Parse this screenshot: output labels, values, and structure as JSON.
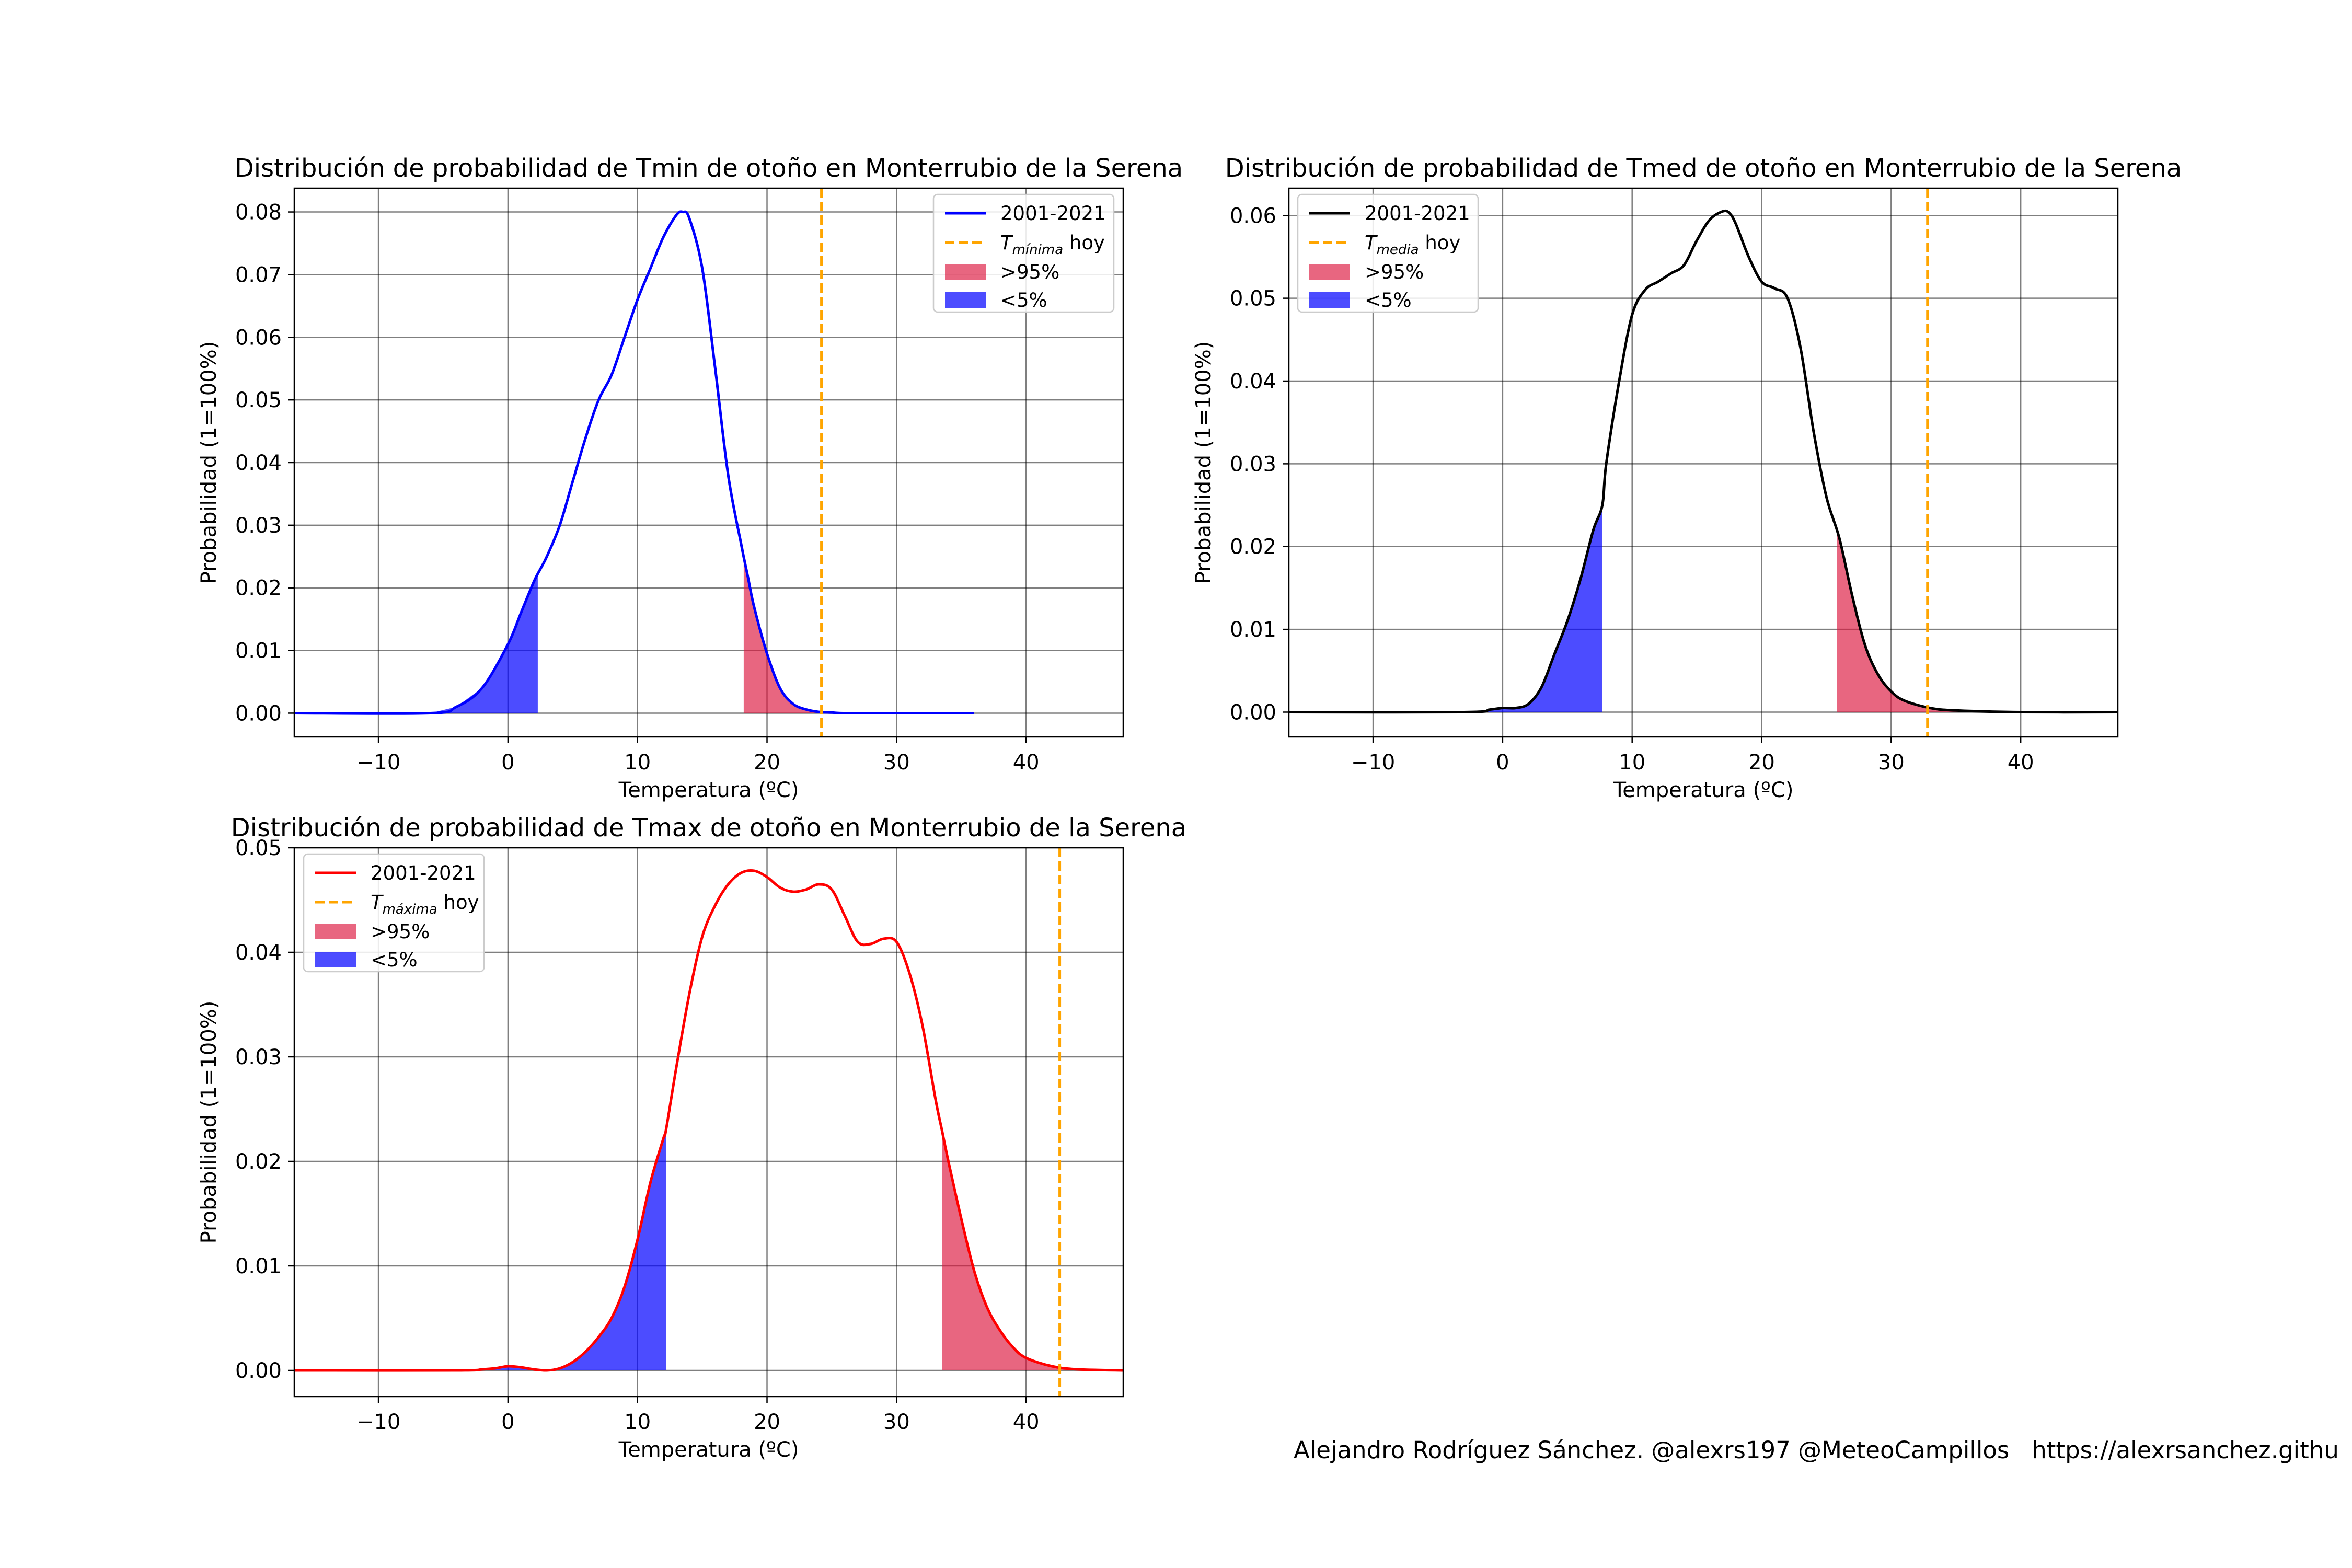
{
  "footer": "Alejandro Rodríguez Sánchez. @alexrs197 @MeteoCampillos   https://alexrsanchez.githu",
  "colors": {
    "above95": "#DC143C",
    "below5": "#0000FF",
    "today": "#FFA500",
    "grid": "#000000"
  },
  "chart_data": [
    {
      "id": "tmin",
      "type": "line",
      "title": "Distribución de probabilidad de Tmin de otoño en Monterrubio de la Serena",
      "xlabel": "Temperatura (ºC)",
      "ylabel": "Probabilidad (1=100%)",
      "xlim": [
        -16.5,
        47.5
      ],
      "ylim": [
        -0.0038,
        0.0838
      ],
      "xticks": [
        -10,
        0,
        10,
        20,
        30,
        40
      ],
      "xtick_labels": [
        "−10",
        "0",
        "10",
        "20",
        "30",
        "40"
      ],
      "yticks": [
        0.0,
        0.01,
        0.02,
        0.03,
        0.04,
        0.05,
        0.06,
        0.07,
        0.08
      ],
      "ytick_labels": [
        "0.00",
        "0.01",
        "0.02",
        "0.03",
        "0.04",
        "0.05",
        "0.06",
        "0.07",
        "0.08"
      ],
      "grid": true,
      "legend_position": "top-right",
      "legend": {
        "series": "2001-2021",
        "today_prefix": "T",
        "today_sub": "mínima",
        "today_suffix": " hoy",
        "above": ">95%",
        "below": "<5%"
      },
      "line_color": "#0000FF",
      "series": [
        {
          "name": "2001-2021",
          "x": [
            -16.5,
            -6,
            -4,
            -2,
            0,
            1,
            2,
            2.5,
            3,
            4,
            5,
            6,
            7,
            8,
            9,
            10,
            11,
            12,
            13,
            13.5,
            14,
            15,
            16,
            17,
            18,
            18.5,
            19,
            20,
            21,
            22,
            23,
            24,
            25,
            26,
            30,
            36
          ],
          "y": [
            0,
            0,
            0.001,
            0.004,
            0.011,
            0.016,
            0.021,
            0.023,
            0.025,
            0.03,
            0.037,
            0.044,
            0.05,
            0.054,
            0.06,
            0.066,
            0.071,
            0.076,
            0.0795,
            0.08,
            0.079,
            0.071,
            0.055,
            0.038,
            0.027,
            0.022,
            0.017,
            0.0095,
            0.004,
            0.0015,
            0.0006,
            0.0002,
            0.0001,
            0,
            0,
            0
          ]
        }
      ],
      "below5_upper": 2.3,
      "above95_lower": 18.2,
      "today_value": 24.2
    },
    {
      "id": "tmed",
      "type": "line",
      "title": "Distribución de probabilidad de Tmed de otoño en Monterrubio de la Serena",
      "xlabel": "Temperatura (ºC)",
      "ylabel": "Probabilidad (1=100%)",
      "xlim": [
        -16.5,
        47.5
      ],
      "ylim": [
        -0.003,
        0.0633
      ],
      "xticks": [
        -10,
        0,
        10,
        20,
        30,
        40
      ],
      "xtick_labels": [
        "−10",
        "0",
        "10",
        "20",
        "30",
        "40"
      ],
      "yticks": [
        0.0,
        0.01,
        0.02,
        0.03,
        0.04,
        0.05,
        0.06
      ],
      "ytick_labels": [
        "0.00",
        "0.01",
        "0.02",
        "0.03",
        "0.04",
        "0.05",
        "0.06"
      ],
      "grid": true,
      "legend_position": "top-left",
      "legend": {
        "series": "2001-2021",
        "today_prefix": "T",
        "today_sub": "media",
        "today_suffix": " hoy",
        "above": ">95%",
        "below": "<5%"
      },
      "line_color": "#000000",
      "series": [
        {
          "name": "2001-2021",
          "x": [
            -16.5,
            -3,
            -1,
            0,
            1,
            2,
            3,
            4,
            5,
            6,
            7,
            7.7,
            8,
            9,
            10,
            11,
            12,
            13,
            14,
            15,
            16,
            17,
            17.5,
            18,
            19,
            20,
            21,
            22,
            23,
            24,
            25,
            26,
            27,
            28,
            29,
            30,
            31,
            33,
            35,
            40,
            47.5
          ],
          "y": [
            0,
            0,
            0.0003,
            0.0005,
            0.0005,
            0.001,
            0.003,
            0.007,
            0.011,
            0.016,
            0.022,
            0.025,
            0.03,
            0.04,
            0.048,
            0.051,
            0.052,
            0.053,
            0.054,
            0.057,
            0.0595,
            0.0605,
            0.0603,
            0.059,
            0.055,
            0.052,
            0.0512,
            0.05,
            0.044,
            0.034,
            0.026,
            0.021,
            0.014,
            0.008,
            0.0045,
            0.0025,
            0.0014,
            0.0005,
            0.0002,
            0,
            0
          ]
        }
      ],
      "below5_upper": 7.7,
      "above95_lower": 25.8,
      "today_value": 32.8
    },
    {
      "id": "tmax",
      "type": "line",
      "title": "Distribución de probabilidad de Tmax de otoño en Monterrubio de la Serena",
      "xlabel": "Temperatura (ºC)",
      "ylabel": "Probabilidad (1=100%)",
      "xlim": [
        -16.5,
        47.5
      ],
      "ylim": [
        -0.0025,
        0.05
      ],
      "xticks": [
        -10,
        0,
        10,
        20,
        30,
        40
      ],
      "xtick_labels": [
        "−10",
        "0",
        "10",
        "20",
        "30",
        "40"
      ],
      "yticks": [
        0.0,
        0.01,
        0.02,
        0.03,
        0.04,
        0.05
      ],
      "ytick_labels": [
        "0.00",
        "0.01",
        "0.02",
        "0.03",
        "0.04",
        "0.05"
      ],
      "grid": true,
      "legend_position": "top-left",
      "legend": {
        "series": "2001-2021",
        "today_prefix": "T",
        "today_sub": "máxima",
        "today_suffix": " hoy",
        "above": ">95%",
        "below": "<5%"
      },
      "line_color": "#FF0000",
      "series": [
        {
          "name": "2001-2021",
          "x": [
            -16.5,
            -4,
            -2,
            -1,
            0,
            1,
            2,
            3,
            4,
            5,
            6,
            7,
            8,
            9,
            10,
            11,
            12,
            12.2,
            13,
            14,
            15,
            16,
            17,
            18,
            19,
            20,
            21,
            22,
            23,
            24,
            25,
            26,
            27,
            28,
            29,
            30,
            31,
            32,
            33,
            33.5,
            34,
            35,
            36,
            37,
            38,
            39,
            40,
            42,
            44,
            47.5
          ],
          "y": [
            0,
            0,
            0.0001,
            0.0002,
            0.0004,
            0.0003,
            0.0001,
            0,
            0.0002,
            0.0008,
            0.0018,
            0.0032,
            0.005,
            0.008,
            0.0125,
            0.018,
            0.0222,
            0.023,
            0.029,
            0.036,
            0.0415,
            0.0445,
            0.0465,
            0.0476,
            0.0478,
            0.0472,
            0.0462,
            0.0458,
            0.046,
            0.0465,
            0.046,
            0.0435,
            0.041,
            0.0408,
            0.0413,
            0.041,
            0.038,
            0.033,
            0.026,
            0.023,
            0.02,
            0.0145,
            0.0095,
            0.006,
            0.0038,
            0.0022,
            0.0012,
            0.0004,
            0.0001,
            0
          ]
        }
      ],
      "below5_upper": 12.2,
      "above95_lower": 33.5,
      "today_value": 42.6
    }
  ]
}
